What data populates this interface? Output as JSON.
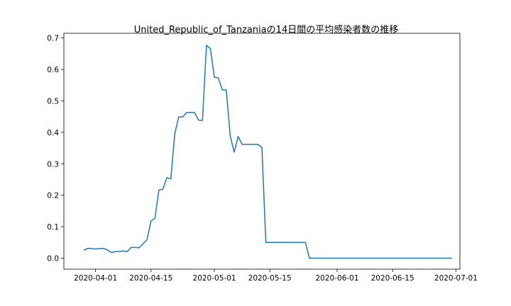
{
  "chart_data": {
    "type": "line",
    "title": "United_Republic_of_Tanzaniaの14日間の平均感染者数の推移",
    "xlabel": "",
    "ylabel": "",
    "grid": false,
    "legend": "none",
    "x_ticks": [
      "2020-04-01",
      "2020-04-15",
      "2020-05-01",
      "2020-05-15",
      "2020-06-01",
      "2020-06-15",
      "2020-07-01"
    ],
    "y_ticks": [
      "0.0",
      "0.1",
      "0.2",
      "0.3",
      "0.4",
      "0.5",
      "0.6",
      "0.7"
    ],
    "xlim": [
      "2020-03-24",
      "2020-07-02"
    ],
    "ylim": [
      -0.035,
      0.715
    ],
    "series": [
      {
        "color": "#1f77b4",
        "x": [
          "2020-03-29",
          "2020-03-30",
          "2020-03-31",
          "2020-04-01",
          "2020-04-02",
          "2020-04-03",
          "2020-04-04",
          "2020-04-05",
          "2020-04-06",
          "2020-04-07",
          "2020-04-08",
          "2020-04-09",
          "2020-04-10",
          "2020-04-11",
          "2020-04-12",
          "2020-04-13",
          "2020-04-14",
          "2020-04-15",
          "2020-04-16",
          "2020-04-17",
          "2020-04-18",
          "2020-04-19",
          "2020-04-20",
          "2020-04-21",
          "2020-04-22",
          "2020-04-23",
          "2020-04-24",
          "2020-04-25",
          "2020-04-26",
          "2020-04-27",
          "2020-04-28",
          "2020-04-29",
          "2020-04-30",
          "2020-05-01",
          "2020-05-02",
          "2020-05-03",
          "2020-05-04",
          "2020-05-05",
          "2020-05-06",
          "2020-05-07",
          "2020-05-08",
          "2020-05-09",
          "2020-05-10",
          "2020-05-11",
          "2020-05-12",
          "2020-05-13",
          "2020-05-14",
          "2020-05-15",
          "2020-05-16",
          "2020-05-17",
          "2020-05-18",
          "2020-05-19",
          "2020-05-20",
          "2020-05-21",
          "2020-05-22",
          "2020-05-23",
          "2020-05-24",
          "2020-05-25",
          "2020-05-26",
          "2020-05-27",
          "2020-05-28",
          "2020-05-29",
          "2020-05-30",
          "2020-05-31",
          "2020-06-01",
          "2020-06-05",
          "2020-06-10",
          "2020-06-15",
          "2020-06-20",
          "2020-06-25",
          "2020-06-30"
        ],
        "y": [
          0.025,
          0.031,
          0.031,
          0.029,
          0.031,
          0.031,
          0.026,
          0.018,
          0.021,
          0.021,
          0.023,
          0.021,
          0.034,
          0.034,
          0.033,
          0.046,
          0.059,
          0.118,
          0.127,
          0.217,
          0.219,
          0.256,
          0.252,
          0.395,
          0.449,
          0.449,
          0.463,
          0.463,
          0.463,
          0.439,
          0.438,
          0.677,
          0.666,
          0.575,
          0.573,
          0.535,
          0.535,
          0.389,
          0.337,
          0.387,
          0.362,
          0.362,
          0.362,
          0.362,
          0.362,
          0.352,
          0.05,
          0.05,
          0.05,
          0.05,
          0.05,
          0.05,
          0.05,
          0.05,
          0.05,
          0.05,
          0.05,
          0.0,
          0.0,
          0.0,
          0.0,
          0.0,
          0.0,
          0.0,
          0.0,
          0.0,
          0.0,
          0.0,
          0.0,
          0.0,
          0.0
        ]
      }
    ]
  }
}
